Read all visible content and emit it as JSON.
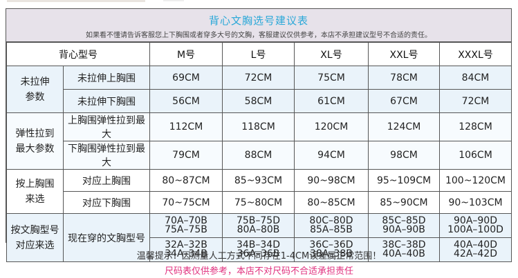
{
  "title": "背心文胸选号建议表",
  "subtitle": "如果看不懂请告诉客服您上下胸围或者穿多大号的文胸，客服建议仅供参考，本店不承担建议型号不合适的责任。",
  "header": {
    "corner": "背心型号",
    "sizes": [
      "M号",
      "L号",
      "XL号",
      "XXL号",
      "XXXL号"
    ]
  },
  "groups": [
    {
      "label_line1": "未拉伸",
      "label_line2": "参数",
      "rows": [
        {
          "label": "未拉伸上胸围",
          "values": [
            "69CM",
            "72CM",
            "75CM",
            "78CM",
            "84CM"
          ]
        },
        {
          "label": "未拉伸下胸围",
          "values": [
            "56CM",
            "58CM",
            "61CM",
            "67CM",
            "72CM"
          ]
        }
      ]
    },
    {
      "label_line1": "弹性拉到",
      "label_line2": "最大参数",
      "rows": [
        {
          "label": "上胸围弹性拉到最大",
          "values": [
            "112CM",
            "118CM",
            "120CM",
            "124CM",
            "128CM"
          ]
        },
        {
          "label": "下胸围弹性拉到最大",
          "values": [
            "79CM",
            "88CM",
            "94CM",
            "98CM",
            "106CM"
          ]
        }
      ]
    },
    {
      "label_line1": "按上胸围",
      "label_line2": "来选",
      "rows": [
        {
          "label": "对应上胸围",
          "values": [
            "80~87CM",
            "85~93CM",
            "90~98CM",
            "95~109CM",
            "100~120CM"
          ]
        },
        {
          "label": "对应下胸围",
          "values": [
            "70~75CM",
            "75~80CM",
            "80~85CM",
            "85~90CM",
            "90~103CM"
          ]
        }
      ]
    },
    {
      "label_line1": "按文胸型号",
      "label_line2": "对应来选",
      "label": "现在穿的文胸型号",
      "rows": [
        {
          "lines": [
            [
              "70A–70B",
              "75A–75B"
            ],
            [
              "75B–75D",
              "80A–80B"
            ],
            [
              "80C–80D",
              "85A–85B"
            ],
            [
              "85C–85D",
              "90A–90B"
            ],
            [
              "90A–90D",
              "100A–100D"
            ]
          ]
        },
        {
          "lines": [
            [
              "32A–32B",
              "34A–34B"
            ],
            [
              "34B–34D",
              "36A–36B"
            ],
            [
              "36C–36D",
              "38A–38B"
            ],
            [
              "38C–38D",
              "40A–40B"
            ],
            [
              "40A–40D",
              "42A–42D"
            ]
          ]
        }
      ]
    }
  ],
  "note_tip": "温馨提示：因测量人工方式不同存在1-4CM误差属正常范围！",
  "note_disclaimer": "尺码表仅供参考，本店不对尺码不合适承担责任",
  "colors": {
    "title": "#2aa8d8",
    "disclaimer": "#e0307e",
    "band": "#e7e2ea"
  }
}
